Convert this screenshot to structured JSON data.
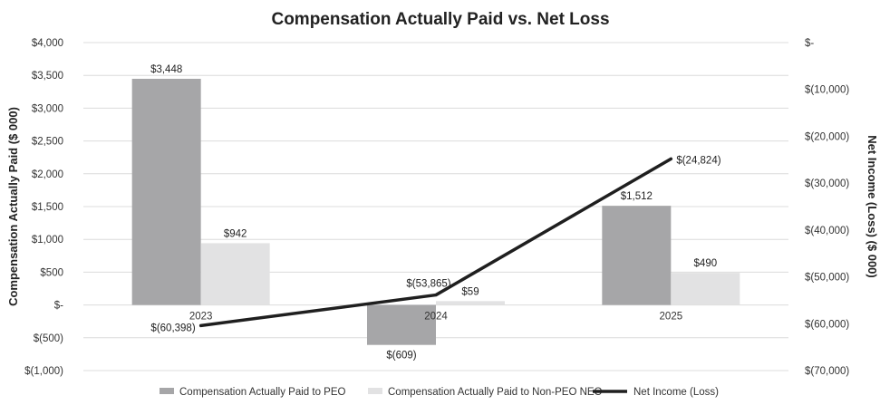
{
  "chart_data": {
    "type": "bar",
    "title": "Compensation Actually Paid vs. Net Loss",
    "ylabel": "Compensation Actually Paid ($ 000)",
    "y2label": "Net Income (Loss) ($ 000)",
    "categories": [
      "2023",
      "2024",
      "2025"
    ],
    "ylim": [
      -1000,
      4000
    ],
    "y2lim": [
      -70000,
      0
    ],
    "y_ticks": [
      4000,
      3500,
      3000,
      2500,
      2000,
      1500,
      1000,
      500,
      0,
      -500,
      -1000
    ],
    "y_tick_labels": [
      "$4,000",
      "$3,500",
      "$3,000",
      "$2,500",
      "$2,000",
      "$1,500",
      "$1,000",
      "$500",
      "$-",
      "$(500)",
      "$(1,000)"
    ],
    "y2_ticks": [
      0,
      -10000,
      -20000,
      -30000,
      -40000,
      -50000,
      -60000,
      -70000
    ],
    "y2_tick_labels": [
      "$-",
      "$(10,000)",
      "$(20,000)",
      "$(30,000)",
      "$(40,000)",
      "$(50,000)",
      "$(60,000)",
      "$(70,000)"
    ],
    "series": [
      {
        "name": "Compensation Actually Paid to PEO",
        "type": "bar",
        "axis": "left",
        "values": [
          3448,
          -609,
          1512
        ],
        "labels": [
          "$3,448",
          "$(609)",
          "$1,512"
        ],
        "color": "#a6a6a8"
      },
      {
        "name": "Compensation Actually Paid to Non-PEO NEO",
        "type": "bar",
        "axis": "left",
        "values": [
          942,
          59,
          490
        ],
        "labels": [
          "$942",
          "$59",
          "$490"
        ],
        "color": "#e2e2e3"
      },
      {
        "name": "Net Income (Loss)",
        "type": "line",
        "axis": "right",
        "values": [
          -60398,
          -53865,
          -24824
        ],
        "labels": [
          "$(60,398)",
          "$(53,865)",
          "$(24,824)"
        ],
        "color": "#1f1f1f"
      }
    ],
    "grid": true,
    "legend_position": "bottom"
  }
}
